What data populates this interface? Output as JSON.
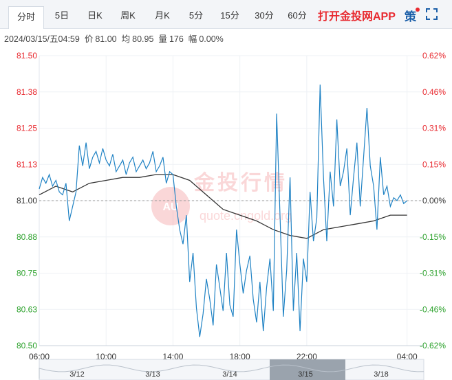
{
  "tabs": [
    {
      "label": "分时",
      "active": true
    },
    {
      "label": "5日"
    },
    {
      "label": "日K"
    },
    {
      "label": "周K"
    },
    {
      "label": "月K"
    },
    {
      "label": "5分"
    },
    {
      "label": "15分"
    },
    {
      "label": "30分"
    },
    {
      "label": "60分"
    }
  ],
  "promo_label": "打开金投网APP",
  "strategy_label": "策",
  "info": {
    "datetime": "2024/03/15/五04:59",
    "price_label": "价",
    "price": "81.00",
    "avg_label": "均",
    "avg": "80.95",
    "volume_label": "量",
    "volume": "176",
    "change_label": "幅",
    "change": "0.00%"
  },
  "watermark": {
    "text": "金投行情",
    "url": "quote.cngold.org",
    "badge": "AU"
  },
  "colors": {
    "line": "#1f82c4",
    "avg_line": "#333333",
    "up": "#e8292f",
    "down": "#2ba12b",
    "base": "#333333"
  },
  "chart_data": {
    "type": "line",
    "ylim": [
      80.5,
      81.5
    ],
    "base_value": 81.0,
    "y_ticks": [
      "81.50",
      "81.38",
      "81.25",
      "81.13",
      "81.00",
      "80.88",
      "80.75",
      "80.63",
      "80.50"
    ],
    "y_ticks_right": [
      "0.62%",
      "0.46%",
      "0.31%",
      "0.15%",
      "0.00%",
      "-0.15%",
      "-0.31%",
      "-0.46%",
      "-0.62%"
    ],
    "x_ticks": [
      "06:00",
      "10:00",
      "14:00",
      "18:00",
      "22:00",
      "04:00"
    ],
    "x_tick_hours": [
      0,
      4,
      8,
      12,
      16,
      22
    ],
    "x_range_hours": [
      0,
      23
    ],
    "navigator_dates": [
      "3/12",
      "3/13",
      "3/14",
      "3/15",
      "3/18"
    ],
    "series": [
      {
        "x": [
          0,
          0.2,
          0.4,
          0.6,
          0.8,
          1.0,
          1.2,
          1.4,
          1.6,
          1.8,
          2.0,
          2.2,
          2.4,
          2.6,
          2.8,
          3.0,
          3.2,
          3.4,
          3.6,
          3.8,
          4.0,
          4.2,
          4.4,
          4.6,
          4.8,
          5.0,
          5.2,
          5.4,
          5.6,
          5.8,
          6.0,
          6.2,
          6.4,
          6.6,
          6.8,
          7.0,
          7.2,
          7.4,
          7.6,
          7.8,
          8.0,
          8.2,
          8.4,
          8.6,
          8.8,
          9.0,
          9.2,
          9.4,
          9.6,
          9.8,
          10.0,
          10.2,
          10.4,
          10.6,
          10.8,
          11.0,
          11.2,
          11.4,
          11.6,
          11.8,
          12.0,
          12.2,
          12.4,
          12.6,
          12.8,
          13.0,
          13.2,
          13.4,
          13.6,
          13.8,
          14.0,
          14.2,
          14.4,
          14.6,
          14.8,
          15.0,
          15.2,
          15.4,
          15.6,
          15.8,
          16.0,
          16.2,
          16.4,
          16.6,
          16.8,
          17.0,
          17.2,
          17.4,
          17.6,
          17.8,
          18.0,
          18.2,
          18.4,
          18.6,
          18.8,
          19.0,
          19.2,
          19.4,
          19.6,
          19.8,
          20.0,
          20.2,
          20.4,
          20.6,
          20.8,
          21.0,
          21.2,
          21.4,
          21.6,
          21.8,
          22.0
        ],
        "values": [
          81.04,
          81.08,
          81.06,
          81.09,
          81.05,
          81.07,
          81.03,
          81.02,
          81.06,
          80.93,
          80.98,
          81.03,
          81.19,
          81.12,
          81.2,
          81.11,
          81.15,
          81.17,
          81.13,
          81.18,
          81.14,
          81.12,
          81.16,
          81.1,
          81.12,
          81.14,
          81.09,
          81.13,
          81.15,
          81.1,
          81.12,
          81.14,
          81.11,
          81.13,
          81.17,
          81.1,
          81.12,
          81.15,
          81.06,
          81.1,
          81.09,
          80.98,
          80.9,
          80.85,
          80.95,
          80.72,
          80.82,
          80.63,
          80.53,
          80.61,
          80.73,
          80.66,
          80.57,
          80.78,
          80.7,
          80.62,
          80.82,
          80.64,
          80.6,
          80.9,
          80.78,
          80.68,
          80.76,
          80.81,
          80.66,
          80.58,
          80.72,
          80.55,
          80.7,
          80.8,
          80.62,
          81.3,
          80.95,
          80.6,
          80.76,
          81.08,
          80.62,
          80.82,
          80.55,
          80.8,
          80.72,
          81.03,
          80.86,
          80.94,
          81.4,
          81.08,
          80.86,
          81.1,
          80.98,
          81.28,
          81.05,
          81.1,
          81.18,
          80.95,
          81.08,
          81.2,
          80.98,
          81.15,
          81.32,
          81.12,
          81.05,
          80.9,
          81.15,
          81.02,
          81.05,
          80.98,
          81.01,
          81.0,
          81.02,
          80.99,
          81.0
        ]
      },
      {
        "x": [
          0,
          1,
          2,
          3,
          4,
          5,
          6,
          7,
          8,
          9,
          10,
          11,
          12,
          13,
          14,
          15,
          16,
          17,
          18,
          19,
          20,
          21,
          22
        ],
        "values": [
          81.02,
          81.05,
          81.03,
          81.06,
          81.07,
          81.08,
          81.08,
          81.09,
          81.09,
          81.07,
          81.02,
          80.97,
          80.95,
          80.93,
          80.9,
          80.88,
          80.87,
          80.9,
          80.91,
          80.92,
          80.93,
          80.95,
          80.95
        ]
      }
    ]
  }
}
